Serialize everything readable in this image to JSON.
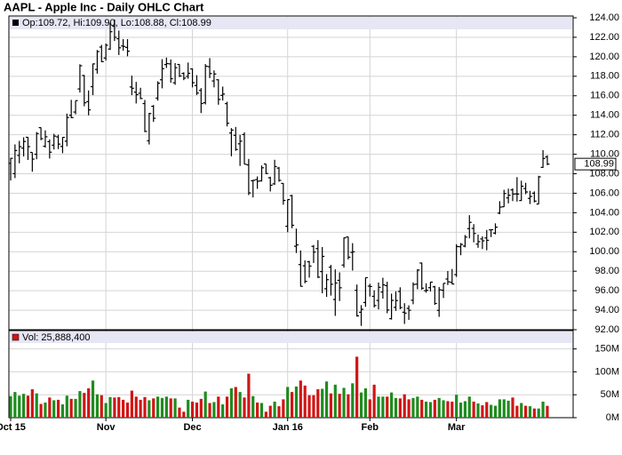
{
  "chart_data": {
    "type": "ohlc",
    "title": "AAPL - Apple Inc - Daily OHLC Chart",
    "legend": "Op:109.72, Hi:109.90, Lo:108.88, Cl:108.99",
    "last_label": "108.99",
    "categories": [
      "Oct 15",
      null,
      null,
      null,
      null,
      null,
      null,
      null,
      null,
      null,
      null,
      null,
      null,
      null,
      null,
      null,
      null,
      null,
      null,
      null,
      null,
      null,
      "Nov",
      null,
      null,
      null,
      null,
      null,
      null,
      null,
      null,
      null,
      null,
      null,
      null,
      null,
      null,
      null,
      null,
      null,
      null,
      null,
      "Dec",
      null,
      null,
      null,
      null,
      null,
      null,
      null,
      null,
      null,
      null,
      null,
      null,
      null,
      null,
      null,
      null,
      null,
      null,
      null,
      null,
      null,
      "Jan 16",
      null,
      null,
      null,
      null,
      null,
      null,
      null,
      null,
      null,
      null,
      null,
      null,
      null,
      null,
      null,
      null,
      null,
      null,
      "Feb",
      null,
      null,
      null,
      null,
      null,
      null,
      null,
      null,
      null,
      null,
      null,
      null,
      null,
      null,
      null,
      null,
      null,
      null,
      null,
      "Mar",
      null,
      null,
      null,
      null,
      null,
      null,
      null,
      null,
      null,
      null,
      null,
      null,
      null,
      null,
      null,
      null,
      null,
      null,
      null,
      null,
      null
    ],
    "open": [
      109.07,
      108.01,
      109.88,
      110.63,
      111.74,
      110.19,
      110.0,
      112.73,
      110.82,
      111.29,
      110.93,
      111.78,
      110.8,
      111.34,
      114.0,
      114.33,
      116.7,
      118.08,
      115.4,
      116.93,
      118.7,
      120.99,
      119.87,
      120.79,
      123.13,
      121.85,
      121.11,
      120.96,
      116.9,
      116.37,
      116.26,
      115.2,
      111.38,
      114.92,
      115.76,
      117.64,
      119.2,
      119.27,
      117.33,
      119.21,
      118.29,
      117.99,
      118.75,
      117.05,
      116.55,
      115.29,
      118.98,
      117.52,
      117.64,
      116.04,
      115.19,
      112.18,
      111.94,
      111.07,
      112.02,
      108.91,
      107.28,
      107.4,
      107.27,
      109.0,
      107.59,
      106.96,
      108.58,
      107.01,
      102.61,
      105.75,
      100.56,
      98.68,
      98.55,
      98.97,
      100.55,
      100.32,
      97.96,
      96.2,
      98.41,
      95.1,
      97.06,
      98.63,
      101.52,
      99.93,
      96.04,
      93.79,
      94.79,
      96.47,
      95.42,
      95.0,
      95.86,
      96.52,
      93.13,
      94.29,
      95.92,
      93.79,
      94.19,
      95.02,
      96.67,
      98.84,
      96.0,
      96.31,
      96.4,
      93.98,
      96.05,
      97.2,
      96.86,
      97.65,
      100.51,
      100.58,
      102.37,
      102.39,
      100.78,
      101.31,
      101.41,
      102.24,
      101.91,
      103.96,
      104.61,
      105.52,
      106.34,
      105.93,
      105.25,
      106.48,
      105.47,
      106.0,
      104.89,
      108.65,
      109.72
    ],
    "high": [
      109.62,
      111.01,
      111.37,
      111.74,
      111.77,
      110.19,
      112.28,
      112.75,
      112.45,
      111.52,
      112.1,
      112.0,
      111.75,
      114.17,
      115.58,
      115.5,
      119.23,
      118.13,
      116.54,
      119.3,
      120.69,
      121.22,
      121.36,
      123.49,
      123.82,
      122.69,
      121.81,
      121.81,
      118.07,
      117.42,
      116.82,
      115.57,
      114.24,
      115.05,
      117.49,
      119.75,
      119.92,
      119.73,
      119.35,
      119.23,
      118.41,
      119.41,
      118.81,
      118.11,
      116.79,
      119.25,
      119.86,
      118.6,
      117.69,
      116.94,
      115.39,
      112.68,
      112.8,
      111.99,
      112.25,
      109.52,
      107.37,
      107.72,
      108.85,
      109.0,
      107.69,
      109.43,
      108.7,
      107.03,
      105.37,
      105.85,
      102.37,
      100.13,
      99.11,
      99.06,
      100.69,
      101.19,
      100.48,
      97.71,
      98.65,
      98.19,
      97.88,
      101.46,
      101.53,
      100.88,
      96.63,
      94.52,
      97.34,
      96.71,
      96.04,
      96.84,
      97.33,
      96.92,
      95.7,
      95.94,
      96.35,
      94.72,
      94.5,
      96.85,
      98.21,
      98.89,
      96.76,
      96.9,
      96.5,
      96.38,
      96.76,
      98.02,
      98.23,
      100.77,
      100.89,
      101.71,
      103.75,
      102.83,
      101.76,
      101.58,
      102.24,
      102.28,
      102.91,
      105.18,
      106.35,
      106.47,
      106.5,
      107.65,
      107.29,
      107.07,
      106.25,
      106.19,
      107.79,
      110.42,
      109.9
    ],
    "low": [
      107.31,
      107.55,
      109.07,
      109.77,
      109.41,
      108.21,
      109.49,
      111.44,
      110.68,
      109.56,
      110.49,
      110.53,
      110.11,
      110.82,
      113.7,
      114.1,
      116.33,
      114.92,
      113.99,
      116.06,
      118.27,
      119.45,
      119.61,
      120.7,
      121.62,
      120.18,
      120.62,
      120.05,
      116.06,
      115.21,
      115.65,
      112.27,
      111.0,
      113.32,
      115.5,
      116.76,
      118.85,
      117.34,
      117.12,
      117.92,
      117.6,
      117.75,
      116.86,
      116.08,
      114.22,
      115.11,
      117.81,
      116.86,
      115.08,
      115.51,
      112.85,
      109.79,
      110.35,
      108.8,
      108.98,
      105.81,
      105.57,
      106.45,
      107.2,
      107.95,
      106.18,
      106.86,
      107.18,
      104.82,
      102.0,
      102.41,
      99.87,
      96.43,
      96.76,
      97.34,
      98.84,
      97.3,
      95.74,
      95.36,
      95.5,
      93.42,
      94.94,
      98.37,
      99.21,
      98.07,
      93.34,
      92.39,
      94.35,
      95.4,
      94.28,
      94.08,
      95.19,
      93.69,
      93.04,
      93.93,
      94.1,
      92.59,
      93.01,
      94.61,
      96.15,
      96.09,
      95.8,
      95.92,
      94.55,
      93.32,
      95.25,
      96.58,
      96.65,
      97.42,
      99.64,
      100.45,
      101.37,
      100.96,
      100.4,
      100.27,
      100.15,
      101.5,
      101.78,
      103.85,
      104.59,
      104.96,
      105.19,
      105.14,
      105.21,
      105.9,
      104.89,
      105.06,
      104.88,
      108.6,
      108.88
    ],
    "close": [
      109.58,
      110.38,
      110.78,
      111.31,
      110.78,
      109.5,
      112.12,
      111.6,
      111.79,
      110.21,
      111.86,
      111.04,
      111.73,
      113.77,
      113.76,
      115.5,
      119.08,
      115.28,
      114.55,
      119.27,
      120.53,
      119.5,
      121.18,
      122.57,
      122.0,
      120.92,
      121.06,
      120.57,
      116.77,
      116.11,
      115.72,
      112.34,
      114.18,
      113.69,
      117.29,
      118.78,
      119.3,
      117.75,
      118.88,
      118.03,
      117.81,
      118.3,
      117.34,
      116.28,
      115.2,
      119.03,
      118.28,
      118.23,
      115.62,
      116.17,
      113.18,
      112.48,
      110.49,
      111.34,
      108.98,
      106.03,
      107.33,
      107.23,
      108.61,
      108.03,
      106.82,
      108.74,
      107.32,
      105.26,
      105.35,
      102.71,
      100.7,
      96.45,
      96.96,
      98.53,
      99.96,
      97.39,
      99.52,
      97.13,
      96.66,
      96.79,
      96.3,
      101.42,
      99.44,
      99.99,
      93.42,
      94.09,
      97.34,
      96.43,
      94.48,
      96.35,
      96.6,
      94.02,
      95.01,
      94.99,
      94.27,
      93.7,
      93.99,
      96.64,
      98.12,
      96.26,
      96.04,
      96.88,
      94.69,
      96.1,
      96.76,
      96.91,
      96.69,
      100.53,
      100.75,
      101.5,
      103.01,
      101.87,
      101.03,
      101.12,
      101.17,
      102.26,
      102.52,
      104.58,
      105.97,
      105.8,
      105.92,
      105.91,
      106.72,
      106.13,
      105.67,
      105.19,
      107.68,
      109.56,
      108.99
    ],
    "color": "#000000",
    "ylim": [
      92,
      124
    ],
    "yticks": [
      {
        "value": 92,
        "label": "92.00"
      },
      {
        "value": 94,
        "label": "94.00"
      },
      {
        "value": 96,
        "label": "96.00"
      },
      {
        "value": 98,
        "label": "98.00"
      },
      {
        "value": 100,
        "label": "100.00"
      },
      {
        "value": 102,
        "label": "102.00"
      },
      {
        "value": 104,
        "label": "104.00"
      },
      {
        "value": 106,
        "label": "106.00"
      },
      {
        "value": 108,
        "label": "108.00"
      },
      {
        "value": 110,
        "label": "110.00"
      },
      {
        "value": 112,
        "label": "112.00"
      },
      {
        "value": 114,
        "label": "114.00"
      },
      {
        "value": 116,
        "label": "116.00"
      },
      {
        "value": 118,
        "label": "118.00"
      },
      {
        "value": 120,
        "label": "120.00"
      },
      {
        "value": 122,
        "label": "122.00"
      },
      {
        "value": 124,
        "label": "124.00"
      }
    ],
    "grid": true,
    "volume": {
      "legend": "Vol: 25,888,400",
      "values": [
        47,
        56,
        48,
        52,
        48,
        62,
        53,
        30,
        33,
        44,
        38,
        39,
        29,
        48,
        41,
        41,
        58,
        54,
        64,
        81,
        51,
        49,
        32,
        45,
        44,
        45,
        39,
        33,
        59,
        46,
        39,
        45,
        38,
        42,
        46,
        43,
        46,
        42,
        42,
        22,
        13,
        39,
        35,
        33,
        41,
        57,
        32,
        34,
        46,
        29,
        46,
        64,
        67,
        56,
        44,
        96,
        47,
        33,
        32,
        13,
        26,
        35,
        25,
        40,
        67,
        56,
        68,
        81,
        70,
        49,
        49,
        62,
        63,
        79,
        53,
        72,
        52,
        65,
        51,
        75,
        133,
        55,
        64,
        40,
        72,
        46,
        46,
        46,
        55,
        43,
        42,
        51,
        40,
        43,
        46,
        39,
        35,
        34,
        39,
        43,
        38,
        36,
        35,
        50,
        33,
        36,
        46,
        35,
        31,
        27,
        34,
        28,
        26,
        40,
        40,
        37,
        44,
        26,
        32,
        26,
        25,
        20,
        20,
        35,
        25.8884
      ],
      "up_color": "#1e8c1e",
      "down_color": "#d01515",
      "ylim": [
        0,
        190
      ],
      "yticks": [
        {
          "value": 0,
          "label": "0M"
        },
        {
          "value": 50,
          "label": "50M"
        },
        {
          "value": 100,
          "label": "100M"
        },
        {
          "value": 150,
          "label": "150M"
        }
      ]
    }
  }
}
